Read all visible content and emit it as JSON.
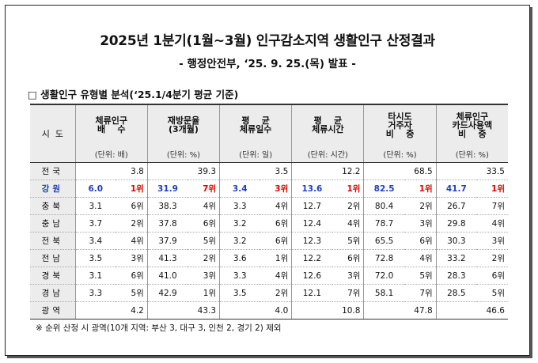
{
  "header": {
    "title": "2025년 1분기(1월~3월) 인구감소지역 생활인구 산정결과",
    "subtitle": "- 행정안전부, ‘25. 9. 25.(목) 발표 -"
  },
  "section": "□ 생활인구 유형별 분석(‘25.1/4분기 평균 기준)",
  "table": {
    "region_header": "시  도",
    "columns": [
      {
        "label": [
          "체류인구",
          "배    수"
        ],
        "unit": "(단위: 배)"
      },
      {
        "label": [
          "재방문율",
          "(3개월)"
        ],
        "unit": "(단위: %)"
      },
      {
        "label": [
          "평    균",
          "체류일수"
        ],
        "unit": "(단위: 일)"
      },
      {
        "label": [
          "평    균",
          "체류시간"
        ],
        "unit": "(단위: 시간)"
      },
      {
        "label": [
          "타시도",
          "거주자",
          "비    중"
        ],
        "unit": "(단위: %)"
      },
      {
        "label": [
          "체류인구",
          "카드사용액",
          "비    중"
        ],
        "unit": "(단위: %)"
      }
    ],
    "rows": [
      {
        "region": "전국",
        "values": [
          "3.8",
          "39.3",
          "3.5",
          "12.2",
          "68.5",
          "33.5"
        ]
      },
      {
        "region": "강원",
        "highlight": true,
        "values": [
          "6.0",
          "31.9",
          "3.4",
          "13.6",
          "82.5",
          "41.7"
        ],
        "ranks": [
          "1위",
          "7위",
          "3위",
          "1위",
          "1위",
          "1위"
        ]
      },
      {
        "region": "충북",
        "values": [
          "3.1",
          "38.3",
          "3.3",
          "12.7",
          "80.4",
          "26.7"
        ],
        "ranks": [
          "6위",
          "4위",
          "4위",
          "2위",
          "2위",
          "7위"
        ]
      },
      {
        "region": "충남",
        "values": [
          "3.7",
          "37.8",
          "3.2",
          "12.4",
          "78.7",
          "29.8"
        ],
        "ranks": [
          "2위",
          "6위",
          "6위",
          "4위",
          "3위",
          "4위"
        ]
      },
      {
        "region": "전북",
        "values": [
          "3.4",
          "37.9",
          "3.2",
          "12.3",
          "65.5",
          "30.3"
        ],
        "ranks": [
          "4위",
          "5위",
          "6위",
          "5위",
          "6위",
          "3위"
        ]
      },
      {
        "region": "전남",
        "values": [
          "3.5",
          "41.3",
          "3.6",
          "12.2",
          "72.8",
          "33.2"
        ],
        "ranks": [
          "3위",
          "2위",
          "1위",
          "6위",
          "4위",
          "2위"
        ]
      },
      {
        "region": "경북",
        "values": [
          "3.1",
          "41.0",
          "3.3",
          "12.6",
          "72.0",
          "28.3"
        ],
        "ranks": [
          "6위",
          "3위",
          "4위",
          "3위",
          "5위",
          "6위"
        ]
      },
      {
        "region": "경남",
        "values": [
          "3.3",
          "42.9",
          "3.5",
          "12.1",
          "58.1",
          "28.5"
        ],
        "ranks": [
          "5위",
          "1위",
          "2위",
          "7위",
          "7위",
          "5위"
        ]
      },
      {
        "region": "광역",
        "values": [
          "4.2",
          "43.3",
          "4.0",
          "10.8",
          "47.8",
          "46.6"
        ]
      }
    ]
  },
  "note": "※ 순위 산정 시 광역(10개 지역: 부산 3, 대구 3, 인천 2, 경기 2) 제외"
}
